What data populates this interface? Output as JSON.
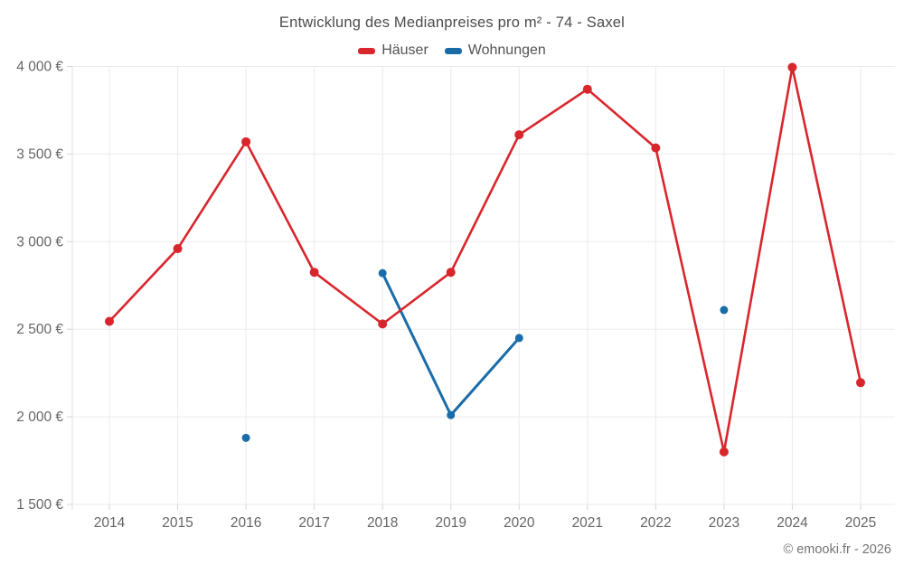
{
  "title": "Entwicklung des Medianpreises pro m² - 74 - Saxel",
  "copyright": "© emooki.fr - 2026",
  "colors": {
    "haeuser": "#d9262d",
    "wohnungen": "#1a6ca8",
    "grid": "#ebebeb",
    "axis_line": "#e0e0e0",
    "tick_mark": "#d6d6d6",
    "tick_text": "#666666",
    "title_text": "#4c4c4c"
  },
  "chart_data": {
    "type": "line",
    "title": "Entwicklung des Medianpreises pro m² - 74 - Saxel",
    "x": [
      "2014",
      "2015",
      "2016",
      "2017",
      "2018",
      "2019",
      "2020",
      "2021",
      "2022",
      "2023",
      "2024",
      "2025"
    ],
    "series": [
      {
        "name": "Häuser",
        "color_key": "haeuser",
        "values": [
          2545,
          2960,
          3570,
          2825,
          2530,
          2825,
          3610,
          3870,
          3535,
          1800,
          3995,
          2195
        ]
      },
      {
        "name": "Wohnungen",
        "color_key": "wohnungen",
        "values": [
          null,
          null,
          1880,
          null,
          2820,
          2010,
          2450,
          null,
          null,
          2610,
          null,
          null
        ]
      }
    ],
    "ylim": [
      1500,
      4000
    ],
    "yticks": [
      {
        "value": 1500,
        "label": "1 500 €"
      },
      {
        "value": 2000,
        "label": "2 000 €"
      },
      {
        "value": 2500,
        "label": "2 500 €"
      },
      {
        "value": 3000,
        "label": "3 000 €"
      },
      {
        "value": 3500,
        "label": "3 500 €"
      },
      {
        "value": 4000,
        "label": "4 000 €"
      }
    ],
    "xlabel": "",
    "ylabel": "",
    "grid": true,
    "legend_position": "top"
  }
}
